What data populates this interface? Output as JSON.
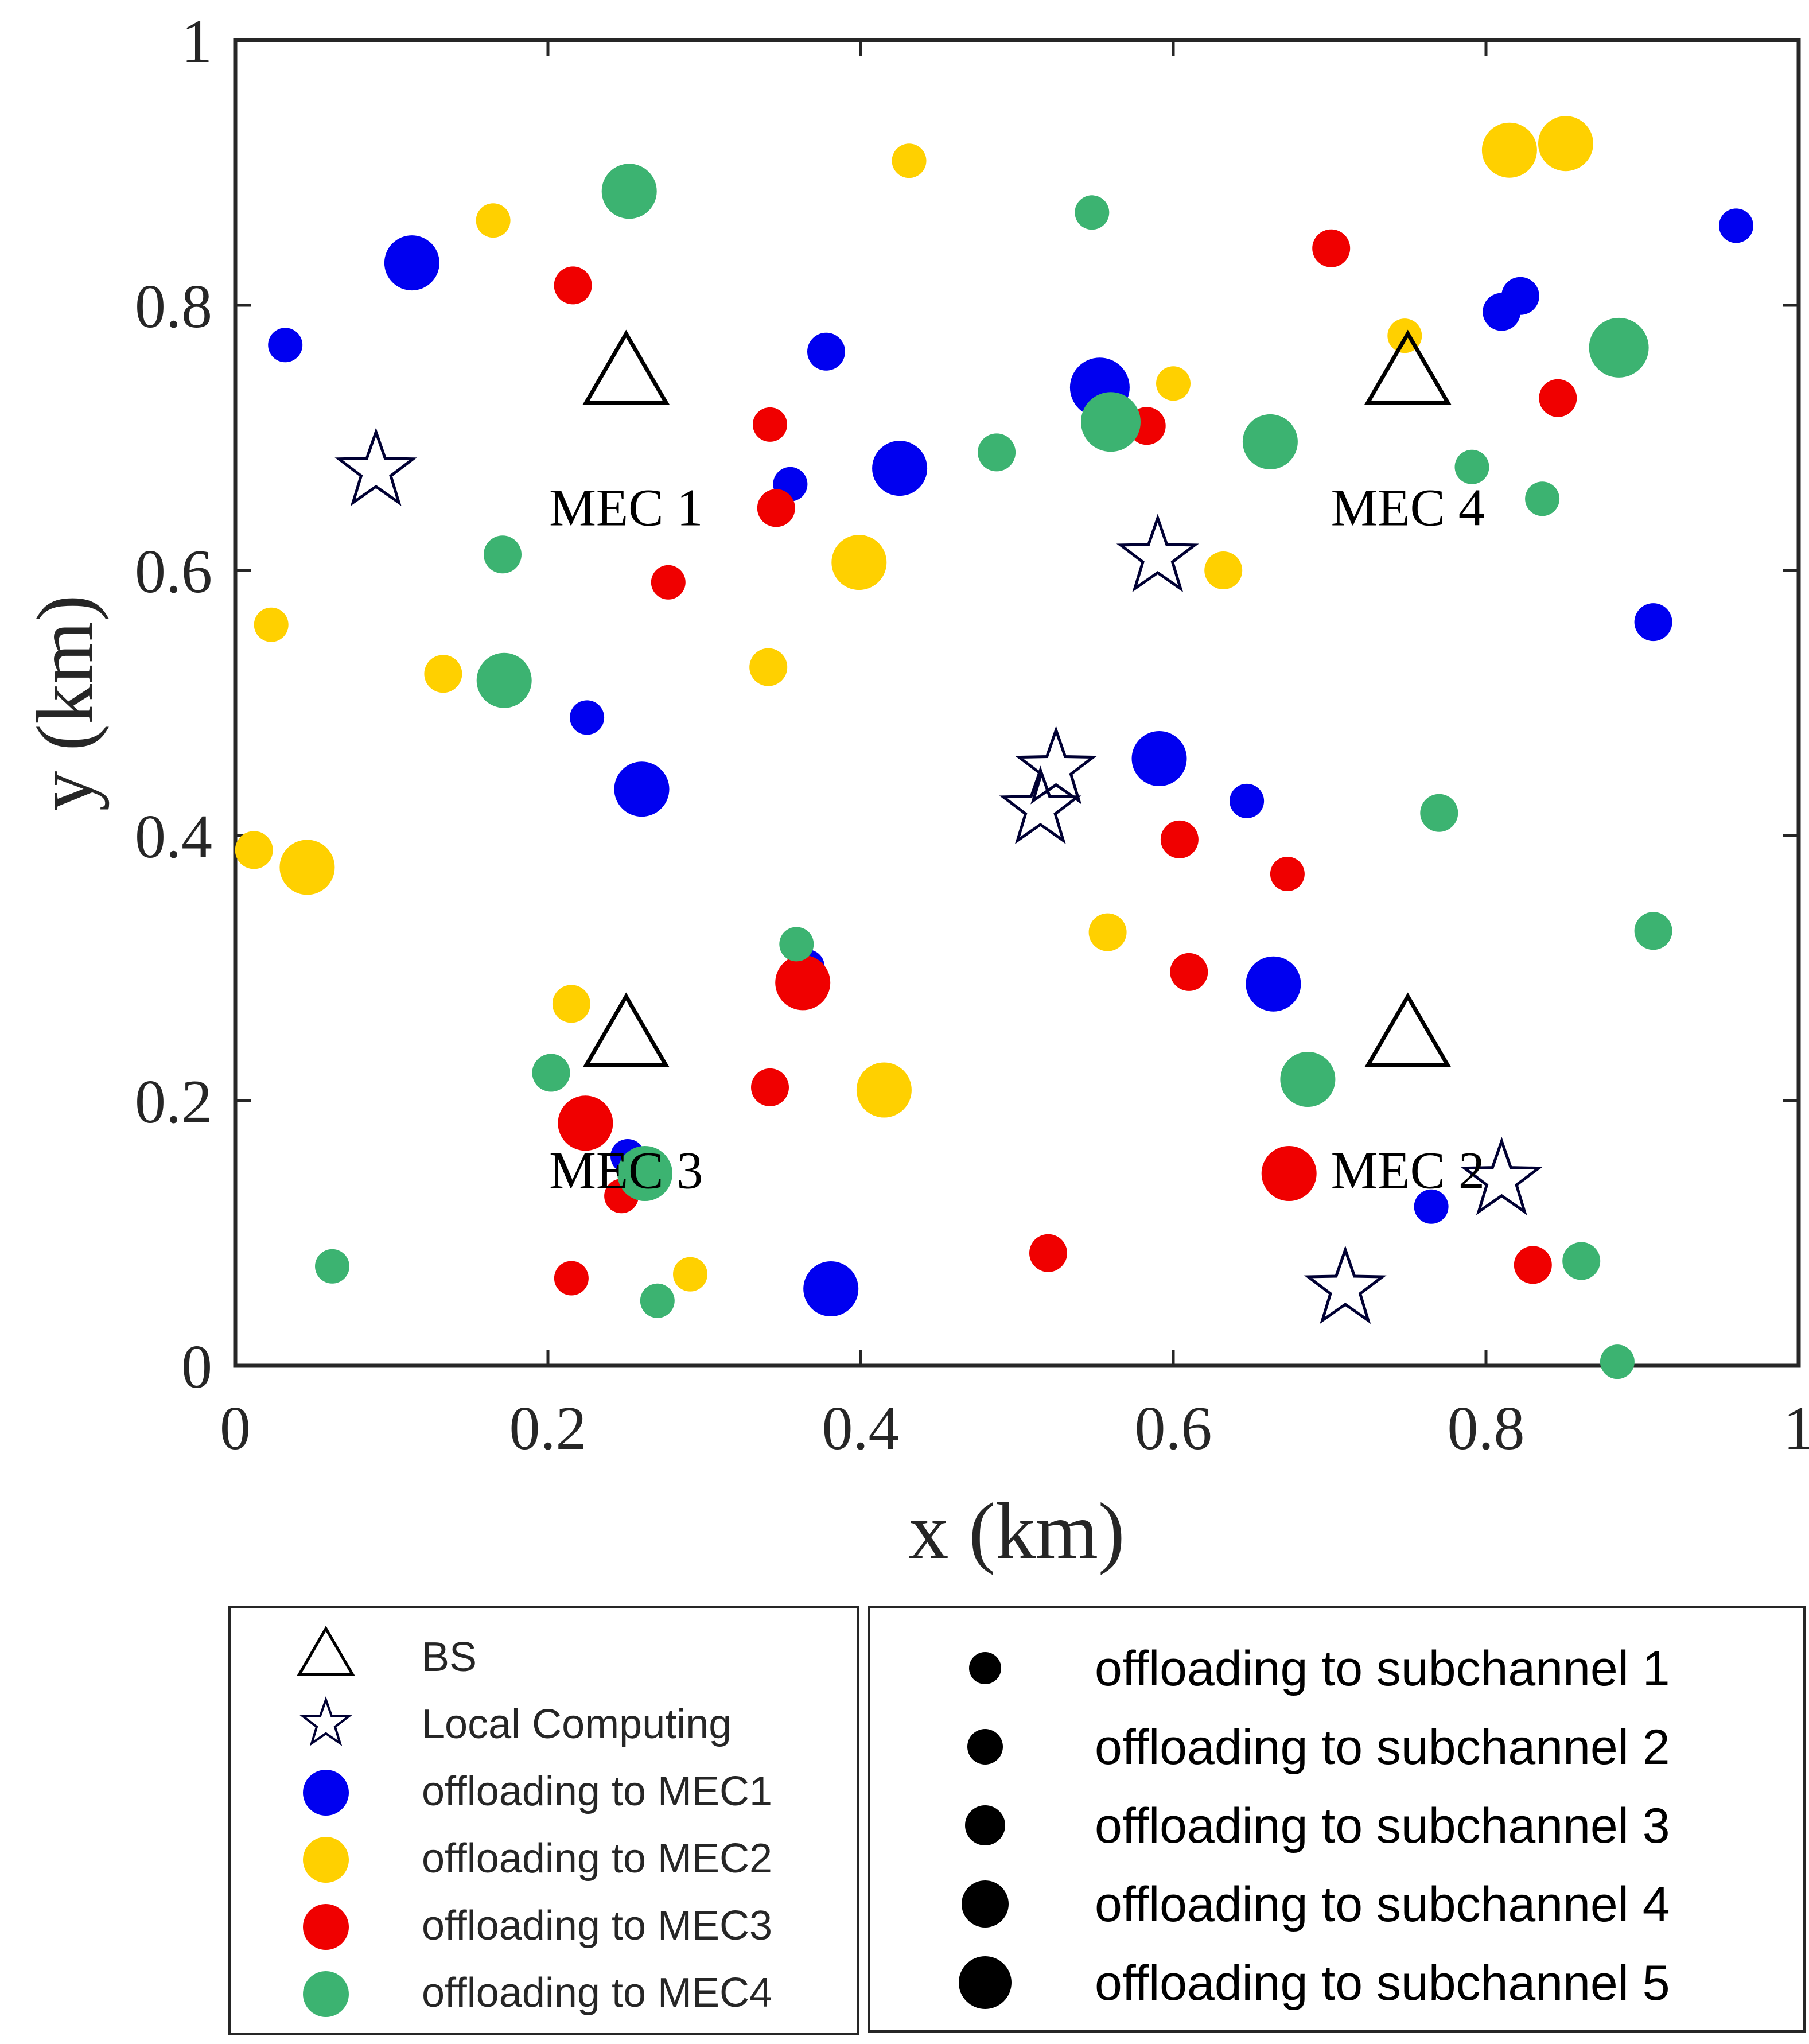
{
  "chart_data": {
    "type": "scatter",
    "xlabel": "x (km)",
    "ylabel": "y (km)",
    "xlim": [
      0,
      1
    ],
    "ylim": [
      0,
      1
    ],
    "xticks": [
      "0",
      "0.2",
      "0.4",
      "0.6",
      "0.8",
      "1"
    ],
    "yticks": [
      "0",
      "0.2",
      "0.4",
      "0.6",
      "0.8",
      "1"
    ],
    "colors": {
      "MEC1": "#0000f0",
      "MEC2": "#ffd000",
      "MEC3": "#f00000",
      "MEC4": "#3cb371",
      "marker_edge": "#000033"
    },
    "base_stations": [
      {
        "label": "MEC 1",
        "x": 0.25,
        "y": 0.75
      },
      {
        "label": "MEC 4",
        "x": 0.75,
        "y": 0.75
      },
      {
        "label": "MEC 3",
        "x": 0.25,
        "y": 0.25
      },
      {
        "label": "MEC 2",
        "x": 0.75,
        "y": 0.25
      }
    ],
    "local_computing": [
      {
        "x": 0.09,
        "y": 0.675
      },
      {
        "x": 0.59,
        "y": 0.61
      },
      {
        "x": 0.525,
        "y": 0.45
      },
      {
        "x": 0.515,
        "y": 0.42
      },
      {
        "x": 0.81,
        "y": 0.14
      },
      {
        "x": 0.71,
        "y": 0.058
      }
    ],
    "users": [
      {
        "mec": "MEC1",
        "subchannel": 4,
        "x": 0.113,
        "y": 0.832
      },
      {
        "mec": "MEC1",
        "subchannel": 1,
        "x": 0.032,
        "y": 0.77
      },
      {
        "mec": "MEC1",
        "subchannel": 2,
        "x": 0.378,
        "y": 0.765
      },
      {
        "mec": "MEC1",
        "subchannel": 4,
        "x": 0.425,
        "y": 0.677
      },
      {
        "mec": "MEC1",
        "subchannel": 5,
        "x": 0.553,
        "y": 0.738
      },
      {
        "mec": "MEC1",
        "subchannel": 1,
        "x": 0.355,
        "y": 0.665
      },
      {
        "mec": "MEC1",
        "subchannel": 1,
        "x": 0.225,
        "y": 0.489
      },
      {
        "mec": "MEC1",
        "subchannel": 4,
        "x": 0.26,
        "y": 0.435
      },
      {
        "mec": "MEC1",
        "subchannel": 4,
        "x": 0.591,
        "y": 0.458
      },
      {
        "mec": "MEC1",
        "subchannel": 1,
        "x": 0.647,
        "y": 0.426
      },
      {
        "mec": "MEC1",
        "subchannel": 1,
        "x": 0.366,
        "y": 0.301
      },
      {
        "mec": "MEC1",
        "subchannel": 4,
        "x": 0.664,
        "y": 0.288
      },
      {
        "mec": "MEC1",
        "subchannel": 1,
        "x": 0.251,
        "y": 0.158
      },
      {
        "mec": "MEC1",
        "subchannel": 4,
        "x": 0.381,
        "y": 0.058
      },
      {
        "mec": "MEC1",
        "subchannel": 1,
        "x": 0.765,
        "y": 0.12
      },
      {
        "mec": "MEC1",
        "subchannel": 2,
        "x": 0.81,
        "y": 0.795
      },
      {
        "mec": "MEC1",
        "subchannel": 2,
        "x": 0.822,
        "y": 0.807
      },
      {
        "mec": "MEC1",
        "subchannel": 1,
        "x": 0.96,
        "y": 0.86
      },
      {
        "mec": "MEC1",
        "subchannel": 2,
        "x": 0.907,
        "y": 0.561
      },
      {
        "mec": "MEC2",
        "subchannel": 1,
        "x": 0.165,
        "y": 0.864
      },
      {
        "mec": "MEC2",
        "subchannel": 1,
        "x": 0.431,
        "y": 0.909
      },
      {
        "mec": "MEC2",
        "subchannel": 4,
        "x": 0.815,
        "y": 0.917
      },
      {
        "mec": "MEC2",
        "subchannel": 4,
        "x": 0.851,
        "y": 0.922
      },
      {
        "mec": "MEC2",
        "subchannel": 1,
        "x": 0.6,
        "y": 0.741
      },
      {
        "mec": "MEC2",
        "subchannel": 1,
        "x": 0.748,
        "y": 0.777
      },
      {
        "mec": "MEC2",
        "subchannel": 4,
        "x": 0.399,
        "y": 0.606
      },
      {
        "mec": "MEC2",
        "subchannel": 2,
        "x": 0.632,
        "y": 0.6
      },
      {
        "mec": "MEC2",
        "subchannel": 1,
        "x": 0.023,
        "y": 0.559
      },
      {
        "mec": "MEC2",
        "subchannel": 2,
        "x": 0.133,
        "y": 0.522
      },
      {
        "mec": "MEC2",
        "subchannel": 2,
        "x": 0.341,
        "y": 0.527
      },
      {
        "mec": "MEC2",
        "subchannel": 2,
        "x": 0.012,
        "y": 0.389
      },
      {
        "mec": "MEC2",
        "subchannel": 4,
        "x": 0.046,
        "y": 0.376
      },
      {
        "mec": "MEC2",
        "subchannel": 2,
        "x": 0.558,
        "y": 0.327
      },
      {
        "mec": "MEC2",
        "subchannel": 2,
        "x": 0.215,
        "y": 0.273
      },
      {
        "mec": "MEC2",
        "subchannel": 4,
        "x": 0.415,
        "y": 0.208
      },
      {
        "mec": "MEC2",
        "subchannel": 1,
        "x": 0.291,
        "y": 0.069
      },
      {
        "mec": "MEC3",
        "subchannel": 2,
        "x": 0.216,
        "y": 0.815
      },
      {
        "mec": "MEC3",
        "subchannel": 2,
        "x": 0.701,
        "y": 0.843
      },
      {
        "mec": "MEC3",
        "subchannel": 1,
        "x": 0.342,
        "y": 0.71
      },
      {
        "mec": "MEC3",
        "subchannel": 2,
        "x": 0.583,
        "y": 0.709
      },
      {
        "mec": "MEC3",
        "subchannel": 2,
        "x": 0.346,
        "y": 0.647
      },
      {
        "mec": "MEC3",
        "subchannel": 1,
        "x": 0.277,
        "y": 0.591
      },
      {
        "mec": "MEC3",
        "subchannel": 2,
        "x": 0.846,
        "y": 0.73
      },
      {
        "mec": "MEC3",
        "subchannel": 2,
        "x": 0.604,
        "y": 0.397
      },
      {
        "mec": "MEC3",
        "subchannel": 1,
        "x": 0.673,
        "y": 0.371
      },
      {
        "mec": "MEC3",
        "subchannel": 4,
        "x": 0.363,
        "y": 0.289
      },
      {
        "mec": "MEC3",
        "subchannel": 2,
        "x": 0.61,
        "y": 0.297
      },
      {
        "mec": "MEC3",
        "subchannel": 2,
        "x": 0.342,
        "y": 0.21
      },
      {
        "mec": "MEC3",
        "subchannel": 4,
        "x": 0.224,
        "y": 0.183
      },
      {
        "mec": "MEC3",
        "subchannel": 4,
        "x": 0.674,
        "y": 0.145
      },
      {
        "mec": "MEC3",
        "subchannel": 1,
        "x": 0.247,
        "y": 0.128
      },
      {
        "mec": "MEC3",
        "subchannel": 1,
        "x": 0.215,
        "y": 0.066
      },
      {
        "mec": "MEC3",
        "subchannel": 2,
        "x": 0.52,
        "y": 0.085
      },
      {
        "mec": "MEC3",
        "subchannel": 2,
        "x": 0.83,
        "y": 0.076
      },
      {
        "mec": "MEC4",
        "subchannel": 4,
        "x": 0.252,
        "y": 0.886
      },
      {
        "mec": "MEC4",
        "subchannel": 1,
        "x": 0.548,
        "y": 0.87
      },
      {
        "mec": "MEC4",
        "subchannel": 5,
        "x": 0.885,
        "y": 0.768
      },
      {
        "mec": "MEC4",
        "subchannel": 5,
        "x": 0.56,
        "y": 0.712
      },
      {
        "mec": "MEC4",
        "subchannel": 4,
        "x": 0.662,
        "y": 0.697
      },
      {
        "mec": "MEC4",
        "subchannel": 2,
        "x": 0.487,
        "y": 0.689
      },
      {
        "mec": "MEC4",
        "subchannel": 1,
        "x": 0.791,
        "y": 0.678
      },
      {
        "mec": "MEC4",
        "subchannel": 1,
        "x": 0.836,
        "y": 0.654
      },
      {
        "mec": "MEC4",
        "subchannel": 2,
        "x": 0.171,
        "y": 0.612
      },
      {
        "mec": "MEC4",
        "subchannel": 4,
        "x": 0.172,
        "y": 0.517
      },
      {
        "mec": "MEC4",
        "subchannel": 2,
        "x": 0.77,
        "y": 0.417
      },
      {
        "mec": "MEC4",
        "subchannel": 2,
        "x": 0.907,
        "y": 0.328
      },
      {
        "mec": "MEC4",
        "subchannel": 1,
        "x": 0.359,
        "y": 0.318
      },
      {
        "mec": "MEC4",
        "subchannel": 4,
        "x": 0.686,
        "y": 0.216
      },
      {
        "mec": "MEC4",
        "subchannel": 2,
        "x": 0.202,
        "y": 0.221
      },
      {
        "mec": "MEC4",
        "subchannel": 4,
        "x": 0.262,
        "y": 0.145
      },
      {
        "mec": "MEC4",
        "subchannel": 1,
        "x": 0.062,
        "y": 0.075
      },
      {
        "mec": "MEC4",
        "subchannel": 1,
        "x": 0.27,
        "y": 0.049
      },
      {
        "mec": "MEC4",
        "subchannel": 2,
        "x": 0.861,
        "y": 0.079
      },
      {
        "mec": "MEC4",
        "subchannel": 1,
        "x": 0.884,
        "y": 0.003
      }
    ],
    "legend_left": [
      {
        "marker": "triangle",
        "label": "BS"
      },
      {
        "marker": "star",
        "label": "Local Computing"
      },
      {
        "marker": "dot",
        "mec": "MEC1",
        "label": "offloading to MEC1"
      },
      {
        "marker": "dot",
        "mec": "MEC2",
        "label": "offloading to MEC2"
      },
      {
        "marker": "dot",
        "mec": "MEC3",
        "label": "offloading to MEC3"
      },
      {
        "marker": "dot",
        "mec": "MEC4",
        "label": "offloading to MEC4"
      }
    ],
    "legend_right": [
      {
        "subchannel": 1,
        "label": "offloading to subchannel 1"
      },
      {
        "subchannel": 2,
        "label": "offloading to subchannel 2"
      },
      {
        "subchannel": 3,
        "label": "offloading to subchannel 3"
      },
      {
        "subchannel": 4,
        "label": "offloading to subchannel 4"
      },
      {
        "subchannel": 5,
        "label": "offloading to subchannel 5"
      }
    ]
  }
}
